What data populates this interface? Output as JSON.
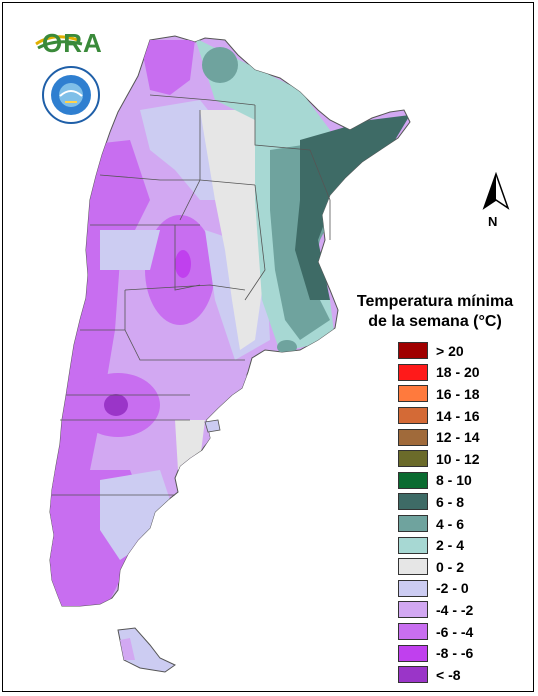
{
  "logo": {
    "text": "ORA"
  },
  "north_label": "N",
  "legend": {
    "title_line1": "Temperatura mínima",
    "title_line2": "de la semana (°C)",
    "items": [
      {
        "label": "> 20",
        "color": "#a00000"
      },
      {
        "label": "18 - 20",
        "color": "#ff1a1a"
      },
      {
        "label": "16 - 18",
        "color": "#ff7a3d"
      },
      {
        "label": "14 - 16",
        "color": "#d46a36"
      },
      {
        "label": "12 - 14",
        "color": "#a06a3a"
      },
      {
        "label": "10 - 12",
        "color": "#6b6b2a"
      },
      {
        "label": "8 - 10",
        "color": "#0a6b30"
      },
      {
        "label": "6 - 8",
        "color": "#3e6b66"
      },
      {
        "label": "4 - 6",
        "color": "#6fa39e"
      },
      {
        "label": "2 - 4",
        "color": "#a7d8d3"
      },
      {
        "label": "0 - 2",
        "color": "#e6e6e6"
      },
      {
        "label": "-2 - 0",
        "color": "#ccccf2"
      },
      {
        "label": "-4 - -2",
        "color": "#d2a8f2"
      },
      {
        "label": "-6 - -4",
        "color": "#c86ef0"
      },
      {
        "label": "-8 - -6",
        "color": "#c040ee"
      },
      {
        "label": "< -8",
        "color": "#9a35c8"
      }
    ]
  }
}
